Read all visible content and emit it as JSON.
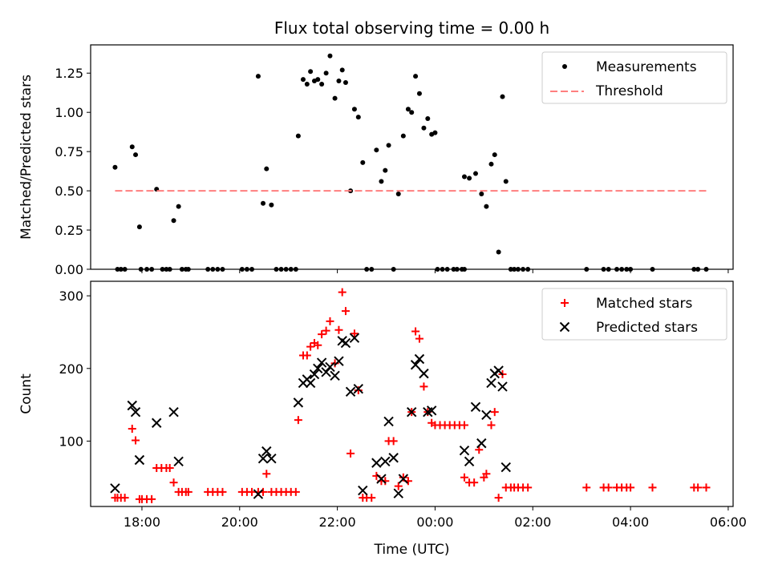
{
  "chart_data": [
    {
      "type": "scatter",
      "title": "Flux total observing time = 0.00 h",
      "xlabel": "",
      "ylabel": "Matched/Predicted stars",
      "xlim": [
        16.95,
        30.1
      ],
      "ylim": [
        0,
        1.43
      ],
      "yticks": [
        0,
        0.25,
        0.5,
        0.75,
        1.0,
        1.25
      ],
      "ytick_labels": [
        "0.00",
        "0.25",
        "0.50",
        "0.75",
        "1.00",
        "1.25"
      ],
      "legend_position": "top-right",
      "series": [
        {
          "name": "Measurements",
          "marker": "dot",
          "color": "#000000",
          "points": [
            [
              17.45,
              0.65
            ],
            [
              17.5,
              0
            ],
            [
              17.57,
              0
            ],
            [
              17.65,
              0
            ],
            [
              17.8,
              0.78
            ],
            [
              17.87,
              0.73
            ],
            [
              17.95,
              0.27
            ],
            [
              17.98,
              0
            ],
            [
              18.1,
              0
            ],
            [
              18.2,
              0
            ],
            [
              18.3,
              0.51
            ],
            [
              18.42,
              0
            ],
            [
              18.5,
              0
            ],
            [
              18.57,
              0
            ],
            [
              18.65,
              0.31
            ],
            [
              18.75,
              0.4
            ],
            [
              18.82,
              0
            ],
            [
              18.9,
              0
            ],
            [
              18.95,
              0
            ],
            [
              19.35,
              0
            ],
            [
              19.45,
              0
            ],
            [
              19.55,
              0
            ],
            [
              19.65,
              0
            ],
            [
              20.05,
              0
            ],
            [
              20.15,
              0
            ],
            [
              20.25,
              0
            ],
            [
              20.38,
              1.23
            ],
            [
              20.48,
              0.42
            ],
            [
              20.55,
              0.64
            ],
            [
              20.65,
              0.41
            ],
            [
              20.75,
              0
            ],
            [
              20.85,
              0
            ],
            [
              20.95,
              0
            ],
            [
              21.05,
              0
            ],
            [
              21.15,
              0
            ],
            [
              21.2,
              0.85
            ],
            [
              21.3,
              1.21
            ],
            [
              21.38,
              1.18
            ],
            [
              21.45,
              1.26
            ],
            [
              21.53,
              1.2
            ],
            [
              21.6,
              1.21
            ],
            [
              21.68,
              1.18
            ],
            [
              21.77,
              1.25
            ],
            [
              21.85,
              1.36
            ],
            [
              21.95,
              1.09
            ],
            [
              22.03,
              1.2
            ],
            [
              22.1,
              1.27
            ],
            [
              22.17,
              1.19
            ],
            [
              22.27,
              0.5
            ],
            [
              22.35,
              1.02
            ],
            [
              22.43,
              0.97
            ],
            [
              22.52,
              0.68
            ],
            [
              22.6,
              0
            ],
            [
              22.7,
              0
            ],
            [
              22.8,
              0.76
            ],
            [
              22.9,
              0.56
            ],
            [
              22.98,
              0.63
            ],
            [
              23.05,
              0.79
            ],
            [
              23.15,
              0
            ],
            [
              23.25,
              0.48
            ],
            [
              23.35,
              0.85
            ],
            [
              23.45,
              1.02
            ],
            [
              23.52,
              1.0
            ],
            [
              23.6,
              1.23
            ],
            [
              23.68,
              1.12
            ],
            [
              23.77,
              0.9
            ],
            [
              23.85,
              0.96
            ],
            [
              23.93,
              0.86
            ],
            [
              24.0,
              0.87
            ],
            [
              24.05,
              0
            ],
            [
              24.15,
              0
            ],
            [
              24.25,
              0
            ],
            [
              24.38,
              0
            ],
            [
              24.45,
              0
            ],
            [
              24.55,
              0
            ],
            [
              24.6,
              0
            ],
            [
              24.6,
              0.59
            ],
            [
              24.7,
              0.58
            ],
            [
              24.83,
              0.61
            ],
            [
              24.95,
              0.48
            ],
            [
              25.05,
              0.4
            ],
            [
              25.15,
              0.67
            ],
            [
              25.22,
              0.73
            ],
            [
              25.3,
              0.11
            ],
            [
              25.38,
              1.1
            ],
            [
              25.45,
              0.56
            ],
            [
              25.55,
              0
            ],
            [
              25.62,
              0
            ],
            [
              25.7,
              0
            ],
            [
              25.8,
              0
            ],
            [
              25.9,
              0
            ],
            [
              27.1,
              0
            ],
            [
              27.45,
              0
            ],
            [
              27.55,
              0
            ],
            [
              27.72,
              0
            ],
            [
              27.82,
              0
            ],
            [
              27.92,
              0
            ],
            [
              28.0,
              0
            ],
            [
              28.45,
              0
            ],
            [
              29.3,
              0
            ],
            [
              29.38,
              0
            ],
            [
              29.55,
              0
            ]
          ]
        },
        {
          "name": "Threshold",
          "style": "dashed",
          "color": "#ff7f7f",
          "points": [
            [
              17.45,
              0.5
            ],
            [
              29.55,
              0.5
            ]
          ]
        }
      ]
    },
    {
      "type": "scatter",
      "title": "",
      "xlabel": "Time (UTC)",
      "ylabel": "Count",
      "xlim": [
        16.95,
        30.1
      ],
      "ylim": [
        10,
        320
      ],
      "xticks": [
        18,
        20,
        22,
        24,
        26,
        28,
        30
      ],
      "xtick_labels": [
        "18:00",
        "20:00",
        "22:00",
        "00:00",
        "02:00",
        "04:00",
        "06:00"
      ],
      "yticks": [
        100,
        200,
        300
      ],
      "ytick_labels": [
        "100",
        "200",
        "300"
      ],
      "legend_position": "top-right",
      "series": [
        {
          "name": "Matched stars",
          "marker": "plus",
          "color": "#ff0000",
          "points": [
            [
              17.45,
              22
            ],
            [
              17.5,
              22
            ],
            [
              17.57,
              22
            ],
            [
              17.65,
              22
            ],
            [
              17.8,
              117
            ],
            [
              17.87,
              101
            ],
            [
              17.95,
              20
            ],
            [
              18.0,
              20
            ],
            [
              18.1,
              20
            ],
            [
              18.2,
              20
            ],
            [
              18.3,
              63
            ],
            [
              18.4,
              63
            ],
            [
              18.5,
              63
            ],
            [
              18.57,
              63
            ],
            [
              18.65,
              43
            ],
            [
              18.75,
              30
            ],
            [
              18.82,
              30
            ],
            [
              18.9,
              30
            ],
            [
              18.95,
              30
            ],
            [
              19.35,
              30
            ],
            [
              19.45,
              30
            ],
            [
              19.55,
              30
            ],
            [
              19.65,
              30
            ],
            [
              20.05,
              30
            ],
            [
              20.15,
              30
            ],
            [
              20.25,
              30
            ],
            [
              20.38,
              30
            ],
            [
              20.48,
              30
            ],
            [
              20.55,
              55
            ],
            [
              20.65,
              30
            ],
            [
              20.75,
              30
            ],
            [
              20.85,
              30
            ],
            [
              20.95,
              30
            ],
            [
              21.05,
              30
            ],
            [
              21.15,
              30
            ],
            [
              21.2,
              129
            ],
            [
              21.3,
              218
            ],
            [
              21.38,
              218
            ],
            [
              21.45,
              230
            ],
            [
              21.53,
              235
            ],
            [
              21.6,
              232
            ],
            [
              21.68,
              247
            ],
            [
              21.77,
              252
            ],
            [
              21.85,
              265
            ],
            [
              21.95,
              207
            ],
            [
              22.03,
              253
            ],
            [
              22.1,
              305
            ],
            [
              22.17,
              279
            ],
            [
              22.27,
              83
            ],
            [
              22.35,
              248
            ],
            [
              22.43,
              170
            ],
            [
              22.52,
              22
            ],
            [
              22.6,
              22
            ],
            [
              22.7,
              22
            ],
            [
              22.8,
              52
            ],
            [
              22.9,
              45
            ],
            [
              22.98,
              45
            ],
            [
              23.05,
              100
            ],
            [
              23.15,
              100
            ],
            [
              23.25,
              38
            ],
            [
              23.35,
              50
            ],
            [
              23.45,
              45
            ],
            [
              23.52,
              140
            ],
            [
              23.6,
              251
            ],
            [
              23.68,
              241
            ],
            [
              23.77,
              175
            ],
            [
              23.85,
              140
            ],
            [
              23.93,
              125
            ],
            [
              24.0,
              122
            ],
            [
              24.1,
              122
            ],
            [
              24.2,
              122
            ],
            [
              24.3,
              122
            ],
            [
              24.4,
              122
            ],
            [
              24.5,
              122
            ],
            [
              24.6,
              122
            ],
            [
              24.6,
              50
            ],
            [
              24.7,
              43
            ],
            [
              24.8,
              43
            ],
            [
              24.9,
              88
            ],
            [
              25.0,
              50
            ],
            [
              25.05,
              55
            ],
            [
              25.15,
              122
            ],
            [
              25.22,
              140
            ],
            [
              25.3,
              22
            ],
            [
              25.38,
              192
            ],
            [
              25.45,
              36
            ],
            [
              25.55,
              36
            ],
            [
              25.62,
              36
            ],
            [
              25.7,
              36
            ],
            [
              25.8,
              36
            ],
            [
              25.9,
              36
            ],
            [
              27.1,
              36
            ],
            [
              27.45,
              36
            ],
            [
              27.55,
              36
            ],
            [
              27.72,
              36
            ],
            [
              27.82,
              36
            ],
            [
              27.92,
              36
            ],
            [
              28.0,
              36
            ],
            [
              28.45,
              36
            ],
            [
              29.3,
              36
            ],
            [
              29.38,
              36
            ],
            [
              29.55,
              36
            ]
          ]
        },
        {
          "name": "Predicted stars",
          "marker": "x",
          "color": "#000000",
          "points": [
            [
              17.45,
              35
            ],
            [
              17.8,
              149
            ],
            [
              17.87,
              140
            ],
            [
              17.95,
              74
            ],
            [
              18.3,
              125
            ],
            [
              18.65,
              140
            ],
            [
              18.75,
              72
            ],
            [
              20.38,
              27
            ],
            [
              20.48,
              76
            ],
            [
              20.55,
              86
            ],
            [
              20.65,
              76
            ],
            [
              21.2,
              153
            ],
            [
              21.3,
              180
            ],
            [
              21.38,
              185
            ],
            [
              21.45,
              180
            ],
            [
              21.53,
              192
            ],
            [
              21.6,
              200
            ],
            [
              21.68,
              208
            ],
            [
              21.77,
              195
            ],
            [
              21.85,
              202
            ],
            [
              21.95,
              190
            ],
            [
              22.03,
              210
            ],
            [
              22.1,
              238
            ],
            [
              22.17,
              235
            ],
            [
              22.27,
              168
            ],
            [
              22.35,
              242
            ],
            [
              22.43,
              172
            ],
            [
              22.52,
              32
            ],
            [
              22.8,
              70
            ],
            [
              22.9,
              48
            ],
            [
              22.98,
              72
            ],
            [
              23.05,
              127
            ],
            [
              23.15,
              77
            ],
            [
              23.25,
              28
            ],
            [
              23.35,
              48
            ],
            [
              23.52,
              140
            ],
            [
              23.6,
              205
            ],
            [
              23.68,
              213
            ],
            [
              23.77,
              193
            ],
            [
              23.85,
              140
            ],
            [
              23.93,
              142
            ],
            [
              24.6,
              87
            ],
            [
              24.7,
              72
            ],
            [
              24.83,
              147
            ],
            [
              24.95,
              97
            ],
            [
              25.05,
              136
            ],
            [
              25.15,
              180
            ],
            [
              25.22,
              193
            ],
            [
              25.3,
              197
            ],
            [
              25.38,
              175
            ],
            [
              25.45,
              64
            ]
          ]
        }
      ]
    }
  ]
}
